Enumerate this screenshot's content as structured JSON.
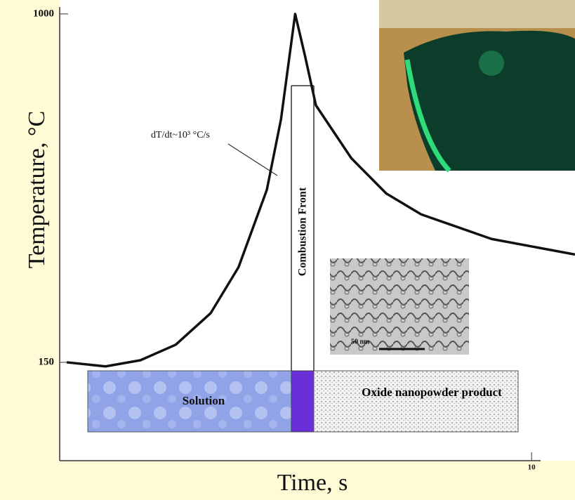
{
  "chart_data": {
    "type": "line",
    "y_label": "Temperature, °C",
    "x_label": "Time, s",
    "x": [
      0.15,
      0.97,
      1.71,
      2.46,
      3.2,
      3.79,
      4.39,
      4.69,
      4.99,
      5.2,
      5.43,
      6.18,
      6.92,
      7.66,
      9.15,
      10.92
    ],
    "series": [
      {
        "color": "#111111",
        "values": [
          150,
          140,
          155,
          193,
          270,
          382,
          571,
          743,
          1000,
          897,
          777,
          648,
          562,
          511,
          451,
          413
        ]
      }
    ],
    "xlim": [
      0,
      10.92
    ],
    "ylim": [
      -90,
      1034
    ],
    "xticks": [
      10
    ],
    "yticks": [
      150,
      1000
    ],
    "annotations": {
      "rate": "dT/dt~10³ °C/s",
      "front": "Combustion Front",
      "solution": "Solution",
      "product": "Oxide nanopowder product",
      "scale": "50 nm"
    }
  }
}
